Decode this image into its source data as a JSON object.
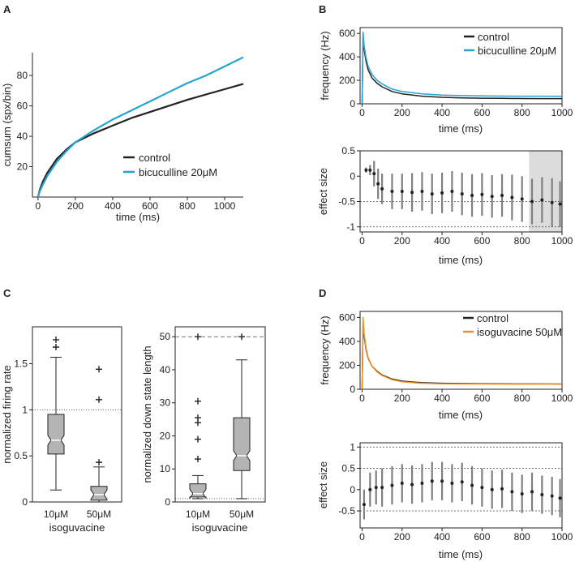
{
  "panel_labels": [
    "A",
    "B",
    "C",
    "D"
  ],
  "colors": {
    "control": "#222222",
    "bicuculline": "#27a3d3",
    "isoguvacine": "#f0901e",
    "errorbar": "#808080",
    "box": "#b4b4b4",
    "shade": "#dcdcdc"
  },
  "chart_data": [
    {
      "id": "A",
      "type": "line",
      "xlabel": "time (ms)",
      "ylabel": "cumsum (spx/bin)",
      "xlim": [
        -30,
        1100
      ],
      "ylim": [
        0,
        95
      ],
      "xticks": [
        0,
        200,
        400,
        600,
        800,
        1000
      ],
      "yticks": [
        20,
        40,
        60,
        80
      ],
      "legend_position": "lower-right",
      "series": [
        {
          "name": "control",
          "color": "#222222",
          "x": [
            0,
            10,
            25,
            50,
            100,
            150,
            200,
            300,
            400,
            500,
            600,
            700,
            800,
            900,
            1000,
            1100
          ],
          "y": [
            0,
            5,
            10,
            16,
            25,
            31,
            36,
            42,
            47,
            52,
            56,
            60,
            64,
            67.5,
            71,
            74.5
          ]
        },
        {
          "name": "bicuculline 20μM",
          "color": "#27a3d3",
          "x": [
            0,
            10,
            25,
            50,
            100,
            150,
            200,
            300,
            400,
            500,
            600,
            700,
            800,
            900,
            1000,
            1100
          ],
          "y": [
            0,
            4,
            8,
            14,
            23,
            30,
            36,
            44,
            51,
            57,
            63,
            69,
            75,
            80,
            86,
            92
          ]
        }
      ]
    },
    {
      "id": "B-top",
      "type": "line",
      "xlabel": "time (ms)",
      "ylabel": "frequency (Hz)",
      "xlim": [
        -10,
        1000
      ],
      "ylim": [
        0,
        650
      ],
      "xticks": [
        0,
        200,
        400,
        600,
        800,
        1000
      ],
      "yticks": [
        0,
        200,
        400,
        600
      ],
      "legend_position": "top-right",
      "series": [
        {
          "name": "control",
          "color": "#222222",
          "x": [
            0,
            5,
            10,
            20,
            30,
            50,
            75,
            100,
            150,
            200,
            300,
            400,
            500,
            600,
            700,
            800,
            900,
            1000
          ],
          "y": [
            0,
            580,
            470,
            360,
            290,
            220,
            175,
            145,
            105,
            85,
            65,
            55,
            50,
            48,
            46,
            45,
            44,
            44
          ]
        },
        {
          "name": "bicuculline 20μM",
          "color": "#27a3d3",
          "x": [
            0,
            5,
            10,
            20,
            30,
            50,
            75,
            100,
            150,
            200,
            300,
            400,
            500,
            600,
            700,
            800,
            900,
            1000
          ],
          "y": [
            0,
            610,
            500,
            390,
            320,
            250,
            200,
            170,
            125,
            105,
            85,
            75,
            70,
            68,
            66,
            65,
            65,
            64
          ]
        }
      ]
    },
    {
      "id": "B-bottom",
      "type": "scatter",
      "xlabel": "time (ms)",
      "ylabel": "effect size",
      "xlim": [
        -10,
        1000
      ],
      "ylim": [
        -1.1,
        0.5
      ],
      "xticks": [
        0,
        200,
        400,
        600,
        800,
        1000
      ],
      "yticks": [
        -1,
        -0.5,
        0,
        0.5
      ],
      "reference_lines": [
        0.5,
        -0.5,
        -1
      ],
      "shaded_x_range": [
        835,
        1000
      ],
      "series": [
        {
          "name": "effect size",
          "x": [
            20,
            40,
            60,
            80,
            100,
            150,
            200,
            250,
            300,
            350,
            400,
            450,
            500,
            550,
            600,
            650,
            700,
            750,
            800,
            850,
            900,
            950,
            990
          ],
          "y": [
            0.12,
            0.12,
            0.05,
            -0.15,
            -0.25,
            -0.3,
            -0.3,
            -0.32,
            -0.3,
            -0.35,
            -0.33,
            -0.3,
            -0.35,
            -0.38,
            -0.36,
            -0.4,
            -0.38,
            -0.42,
            -0.45,
            -0.5,
            -0.47,
            -0.52,
            -0.55
          ],
          "err": [
            0.05,
            0.1,
            0.25,
            0.3,
            0.3,
            0.35,
            0.35,
            0.38,
            0.38,
            0.4,
            0.4,
            0.4,
            0.42,
            0.42,
            0.42,
            0.42,
            0.42,
            0.45,
            0.45,
            0.45,
            0.45,
            0.48,
            0.45
          ]
        }
      ]
    },
    {
      "id": "C-left",
      "type": "box",
      "xlabel": "isoguvacine",
      "ylabel": "normalized firing rate",
      "ylim": [
        0,
        1.9
      ],
      "yticks": [
        0,
        0.5,
        1,
        1.5
      ],
      "categories": [
        "10μM",
        "50μM"
      ],
      "reference_line": 1,
      "boxes": [
        {
          "min": 0.13,
          "q1": 0.52,
          "median": 0.67,
          "q3": 0.95,
          "max": 1.57,
          "outliers": [
            1.68,
            1.76
          ]
        },
        {
          "min": 0.0,
          "q1": 0.02,
          "median": 0.08,
          "q3": 0.17,
          "max": 0.38,
          "outliers": [
            0.43,
            1.11,
            1.44
          ]
        }
      ]
    },
    {
      "id": "C-right",
      "type": "box",
      "xlabel": "isoguvacine",
      "ylabel": "normalized down state length",
      "ylim": [
        0,
        53
      ],
      "yticks": [
        0,
        10,
        20,
        30,
        40,
        50
      ],
      "categories": [
        "10μM",
        "50μM"
      ],
      "reference_lines": [
        50,
        1
      ],
      "boxes": [
        {
          "min": 1,
          "q1": 1.5,
          "median": 2.5,
          "q3": 5.5,
          "max": 8,
          "outliers": [
            13,
            19,
            24,
            25.5,
            30.5,
            50
          ]
        },
        {
          "min": 1,
          "q1": 9.5,
          "median": 14,
          "q3": 25.5,
          "max": 43,
          "outliers": [
            50
          ]
        }
      ]
    },
    {
      "id": "D-top",
      "type": "line",
      "xlabel": "time (ms)",
      "ylabel": "frequency (Hz)",
      "xlim": [
        -10,
        1000
      ],
      "ylim": [
        0,
        650
      ],
      "xticks": [
        0,
        200,
        400,
        600,
        800,
        1000
      ],
      "yticks": [
        0,
        200,
        400,
        600
      ],
      "legend_position": "top-right",
      "series": [
        {
          "name": "control",
          "color": "#222222",
          "x": [
            0,
            5,
            10,
            20,
            30,
            50,
            75,
            100,
            150,
            200,
            300,
            400,
            500,
            600,
            700,
            800,
            900,
            1000
          ],
          "y": [
            0,
            560,
            450,
            330,
            260,
            190,
            150,
            120,
            85,
            68,
            55,
            50,
            48,
            47,
            46,
            45,
            45,
            44
          ]
        },
        {
          "name": "isoguvacine 50μM",
          "color": "#f0901e",
          "x": [
            0,
            5,
            10,
            20,
            30,
            50,
            75,
            100,
            150,
            200,
            300,
            400,
            500,
            600,
            700,
            800,
            900,
            1000
          ],
          "y": [
            0,
            600,
            470,
            340,
            265,
            190,
            145,
            115,
            80,
            62,
            50,
            46,
            45,
            44,
            43,
            43,
            44,
            45
          ]
        }
      ]
    },
    {
      "id": "D-bottom",
      "type": "scatter",
      "xlabel": "time (ms)",
      "ylabel": "effect size",
      "xlim": [
        -10,
        1000
      ],
      "ylim": [
        -0.9,
        1.1
      ],
      "xticks": [
        0,
        200,
        400,
        600,
        800,
        1000
      ],
      "yticks": [
        -0.5,
        0,
        0.5,
        1
      ],
      "reference_lines": [
        1,
        0.5,
        -0.5
      ],
      "series": [
        {
          "name": "effect size",
          "x": [
            10,
            40,
            70,
            100,
            150,
            200,
            250,
            300,
            350,
            400,
            450,
            500,
            550,
            600,
            650,
            700,
            750,
            800,
            850,
            900,
            950,
            990
          ],
          "y": [
            -0.35,
            0.0,
            0.05,
            0.05,
            0.1,
            0.15,
            0.12,
            0.15,
            0.2,
            0.2,
            0.15,
            0.18,
            0.1,
            0.05,
            0.0,
            0.02,
            -0.05,
            -0.1,
            -0.05,
            -0.12,
            -0.15,
            -0.2
          ],
          "err": [
            0.35,
            0.4,
            0.4,
            0.45,
            0.45,
            0.45,
            0.45,
            0.45,
            0.45,
            0.45,
            0.45,
            0.45,
            0.45,
            0.45,
            0.45,
            0.45,
            0.45,
            0.45,
            0.45,
            0.45,
            0.45,
            0.45
          ]
        }
      ]
    }
  ]
}
